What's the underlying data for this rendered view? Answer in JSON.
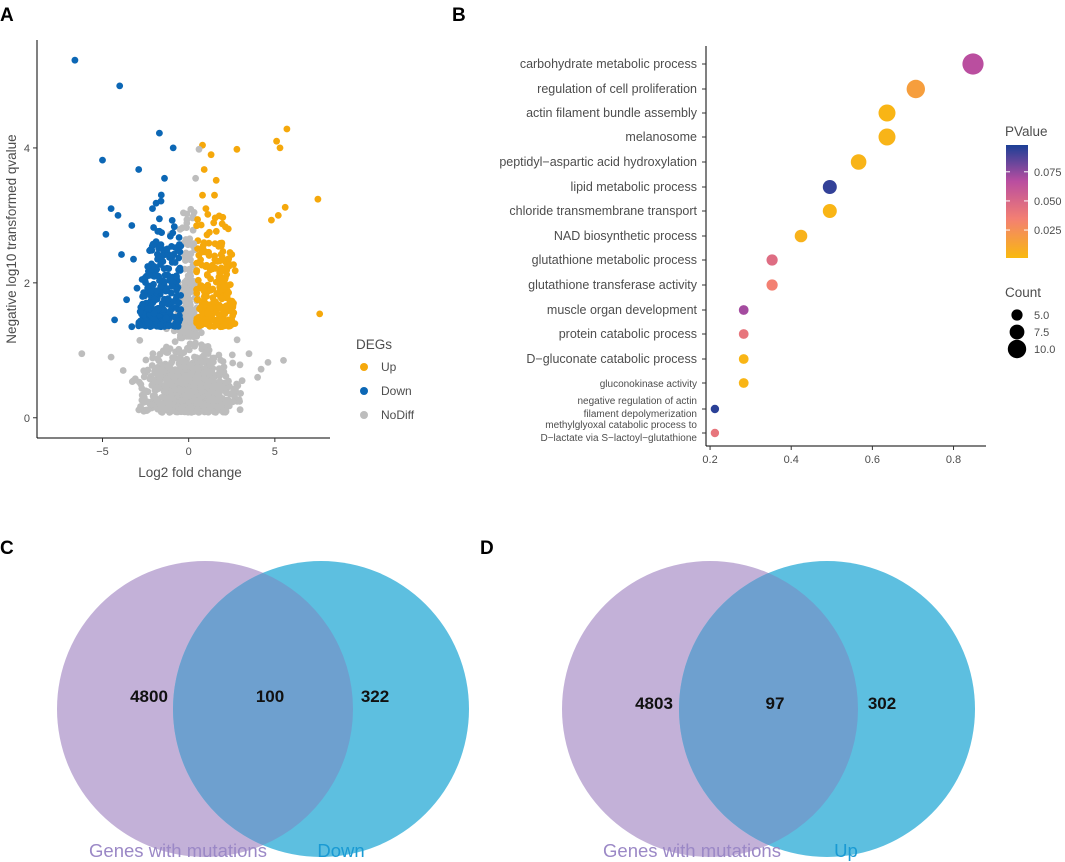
{
  "panels": {
    "A": "A",
    "B": "B",
    "C": "C",
    "D": "D"
  },
  "colors": {
    "up": "#f5a80b",
    "down": "#0c67b5",
    "nodiff": "#bdbdbd",
    "venn_left": "#c3b1d8",
    "venn_right": "#5dbfe0",
    "venn_overlap": "#6ea0cf",
    "label_left": "#9b88c6",
    "label_right": "#1a9ad3"
  },
  "chart_data": [
    {
      "id": "volcano",
      "type": "scatter",
      "xlabel": "Log2 fold change",
      "ylabel": "Negative log10 transformed qvalue",
      "xlim": [
        -8.8,
        8.2
      ],
      "ylim": [
        -0.3,
        5.6
      ],
      "xticks": [
        -5,
        0,
        5
      ],
      "xtick_labels": [
        "−5",
        "0",
        "5"
      ],
      "yticks": [
        0,
        2,
        4
      ],
      "ytick_labels": [
        "0",
        "2",
        "4"
      ],
      "legend": {
        "title": "DEGs",
        "position": "right",
        "entries": [
          {
            "label": "Up",
            "color_key": "up"
          },
          {
            "label": "Down",
            "color_key": "down"
          },
          {
            "label": "NoDiff",
            "color_key": "nodiff"
          }
        ]
      },
      "series": [
        {
          "name": "Up",
          "color_key": "up",
          "points": [
            [
              5.7,
              4.28
            ],
            [
              5.1,
              4.1
            ],
            [
              5.3,
              4.0
            ],
            [
              2.8,
              3.98
            ],
            [
              7.5,
              3.24
            ],
            [
              5.6,
              3.12
            ],
            [
              5.2,
              3.0
            ],
            [
              4.8,
              2.93
            ],
            [
              7.6,
              1.54
            ],
            [
              0.8,
              4.04
            ],
            [
              1.3,
              3.9
            ],
            [
              0.9,
              3.68
            ],
            [
              1.6,
              3.52
            ],
            [
              0.8,
              3.3
            ],
            [
              1.0,
              3.1
            ],
            [
              1.5,
              3.3
            ],
            [
              2.3,
              2.8
            ],
            [
              2.6,
              2.27
            ],
            [
              2.7,
              2.18
            ],
            [
              1.9,
              2.55
            ],
            [
              2.4,
              2.45
            ],
            [
              2.1,
              2.05
            ],
            [
              2.6,
              1.7
            ],
            [
              2.3,
              1.45
            ],
            [
              1.2,
              2.75
            ],
            [
              1.8,
              2.15
            ],
            [
              1.4,
              1.78
            ],
            [
              1.1,
              1.55
            ],
            [
              2.5,
              2.42
            ],
            [
              2.0,
              2.35
            ]
          ]
        },
        {
          "name": "Down",
          "color_key": "down",
          "points": [
            [
              -6.6,
              5.3
            ],
            [
              -4.0,
              4.92
            ],
            [
              -1.7,
              4.22
            ],
            [
              -5.0,
              3.82
            ],
            [
              -2.9,
              3.68
            ],
            [
              -0.9,
              4.0
            ],
            [
              -1.4,
              3.55
            ],
            [
              -4.5,
              3.1
            ],
            [
              -4.1,
              3.0
            ],
            [
              -3.3,
              2.85
            ],
            [
              -2.1,
              3.1
            ],
            [
              -4.8,
              2.72
            ],
            [
              -3.9,
              2.42
            ],
            [
              -3.2,
              2.35
            ],
            [
              -3.0,
              1.92
            ],
            [
              -3.6,
              1.75
            ],
            [
              -4.3,
              1.45
            ],
            [
              -3.3,
              1.35
            ],
            [
              -2.7,
              2.05
            ],
            [
              -2.4,
              1.62
            ],
            [
              -1.7,
              2.95
            ],
            [
              -1.8,
              2.35
            ],
            [
              -2.0,
              1.55
            ]
          ]
        },
        {
          "name": "NoDiff",
          "color_key": "nodiff",
          "points": [
            [
              0.6,
              3.98
            ],
            [
              0.4,
              3.55
            ],
            [
              -0.1,
              3.02
            ],
            [
              0.3,
              2.58
            ],
            [
              -6.2,
              0.95
            ],
            [
              -4.5,
              0.9
            ],
            [
              -3.8,
              0.7
            ],
            [
              -3.2,
              0.55
            ],
            [
              -2.5,
              0.4
            ],
            [
              3.5,
              0.95
            ],
            [
              4.6,
              0.82
            ],
            [
              5.5,
              0.85
            ],
            [
              4.2,
              0.72
            ],
            [
              3.1,
              0.55
            ],
            [
              4.0,
              0.6
            ],
            [
              -1.0,
              0.1
            ],
            [
              -0.4,
              0.15
            ],
            [
              0.5,
              0.12
            ],
            [
              1.1,
              0.1
            ]
          ]
        }
      ],
      "band": {
        "description": "dense cloud of points spanning x from -2.5 to 2.8 near y 0.1–1.3, plus dense central column up to y~3.3",
        "counts": {
          "down_band": 260,
          "up_band": 240,
          "nodiff_cloud": 900,
          "nodiff_column": 180
        }
      }
    },
    {
      "id": "go-enrichment",
      "type": "scatter",
      "subtype": "dot-plot",
      "xlim": [
        0.19,
        0.88
      ],
      "xticks": [
        0.2,
        0.4,
        0.6,
        0.8
      ],
      "xtick_labels": [
        "0.2",
        "0.4",
        "0.6",
        "0.8"
      ],
      "categories": [
        {
          "label": [
            "carbohydrate metabolic process"
          ],
          "x": 0.848,
          "count": 12,
          "pvalue": 0.065
        },
        {
          "label": [
            "regulation of cell proliferation"
          ],
          "x": 0.707,
          "count": 10,
          "pvalue": 0.016
        },
        {
          "label": [
            "actin filament bundle assembly"
          ],
          "x": 0.636,
          "count": 9,
          "pvalue": 0.003
        },
        {
          "label": [
            "melanosome"
          ],
          "x": 0.636,
          "count": 9,
          "pvalue": 0.004
        },
        {
          "label": [
            "peptidyl−aspartic acid hydroxylation"
          ],
          "x": 0.566,
          "count": 8,
          "pvalue": 0.004
        },
        {
          "label": [
            "lipid metabolic process"
          ],
          "x": 0.495,
          "count": 7,
          "pvalue": 0.093
        },
        {
          "label": [
            "chloride transmembrane transport"
          ],
          "x": 0.495,
          "count": 7,
          "pvalue": 0.003
        },
        {
          "label": [
            "NAD biosynthetic process"
          ],
          "x": 0.424,
          "count": 6,
          "pvalue": 0.005
        },
        {
          "label": [
            "glutathione metabolic process"
          ],
          "x": 0.353,
          "count": 5,
          "pvalue": 0.045
        },
        {
          "label": [
            "glutathione transferase activity"
          ],
          "x": 0.353,
          "count": 5,
          "pvalue": 0.033
        },
        {
          "label": [
            "muscle organ development"
          ],
          "x": 0.283,
          "count": 4,
          "pvalue": 0.07
        },
        {
          "label": [
            "protein catabolic process"
          ],
          "x": 0.283,
          "count": 4,
          "pvalue": 0.04
        },
        {
          "label": [
            "D−gluconate catabolic process"
          ],
          "x": 0.283,
          "count": 4,
          "pvalue": 0.003
        },
        {
          "label": [
            "gluconokinase activity"
          ],
          "x": 0.283,
          "count": 4,
          "pvalue": 0.003
        },
        {
          "label": [
            "negative regulation of actin",
            "filament depolymerization"
          ],
          "x": 0.212,
          "count": 3,
          "pvalue": 0.095
        },
        {
          "label": [
            "methylglyoxal catabolic process to",
            "D−lactate via S−lactoyl−glutathione"
          ],
          "x": 0.212,
          "count": 3,
          "pvalue": 0.04
        }
      ],
      "legend_pvalue": {
        "title": "PValue",
        "ticks": [
          0.075,
          0.05,
          0.025
        ],
        "tick_labels": [
          "0.075",
          "0.050",
          "0.025"
        ],
        "range": [
          0.001,
          0.098
        ],
        "gradient": [
          "#f9b90f",
          "#f37f73",
          "#b94da0",
          "#1b3f96"
        ]
      },
      "legend_count": {
        "title": "Count",
        "entries": [
          {
            "label": "5.0",
            "value": 5
          },
          {
            "label": "7.5",
            "value": 7.5
          },
          {
            "label": "10.0",
            "value": 10
          }
        ]
      }
    },
    {
      "id": "venn-down",
      "type": "venn",
      "sets": [
        {
          "name": "Genes with mutations",
          "only": 4800,
          "color_key": "venn_left",
          "label_color_key": "label_left"
        },
        {
          "name": "Down",
          "only": 322,
          "color_key": "venn_right",
          "label_color_key": "label_right"
        }
      ],
      "overlap": 100,
      "labels": {
        "left_only": "4800",
        "overlap": "100",
        "right_only": "322"
      }
    },
    {
      "id": "venn-up",
      "type": "venn",
      "sets": [
        {
          "name": "Genes with mutations",
          "only": 4803,
          "color_key": "venn_left",
          "label_color_key": "label_left"
        },
        {
          "name": "Up",
          "only": 302,
          "color_key": "venn_right",
          "label_color_key": "label_right"
        }
      ],
      "overlap": 97,
      "labels": {
        "left_only": "4803",
        "overlap": "97",
        "right_only": "302"
      }
    }
  ]
}
